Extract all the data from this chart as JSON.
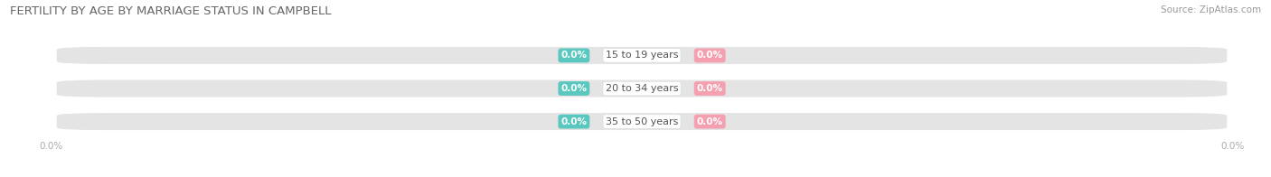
{
  "title": "FERTILITY BY AGE BY MARRIAGE STATUS IN CAMPBELL",
  "source": "Source: ZipAtlas.com",
  "categories": [
    "15 to 19 years",
    "20 to 34 years",
    "35 to 50 years"
  ],
  "married_values": [
    "0.0%",
    "0.0%",
    "0.0%"
  ],
  "unmarried_values": [
    "0.0%",
    "0.0%",
    "0.0%"
  ],
  "married_color": "#5bc8c0",
  "unmarried_color": "#f4a0b0",
  "bar_bg_color": "#e4e4e4",
  "center_label_bg": "#ffffff",
  "title_color": "#666666",
  "source_color": "#999999",
  "label_color": "#555555",
  "tick_color": "#aaaaaa",
  "title_fontsize": 9.5,
  "source_fontsize": 7.5,
  "label_fontsize": 7.5,
  "cat_fontsize": 8.0,
  "tick_fontsize": 7.5,
  "bar_height": 0.52,
  "figsize": [
    14.06,
    1.96
  ],
  "dpi": 100,
  "xlim": [
    -1.0,
    1.0
  ]
}
